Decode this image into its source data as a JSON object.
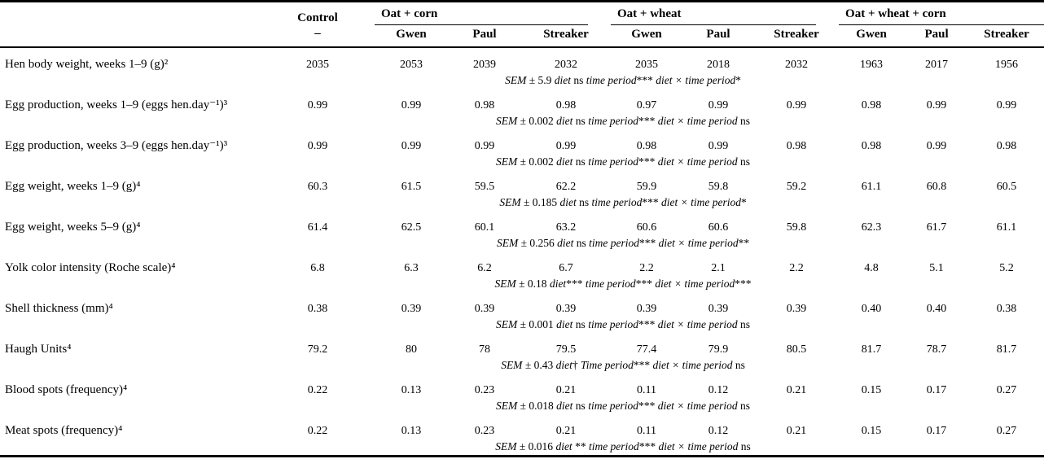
{
  "table": {
    "stub_header": "",
    "col_groups": [
      {
        "label": "Control",
        "sub": "–"
      },
      {
        "label": "Oat + corn",
        "cultivars": [
          "Gwen",
          "Paul",
          "Streaker"
        ]
      },
      {
        "label": "Oat + wheat",
        "cultivars": [
          "Gwen",
          "Paul",
          "Streaker"
        ]
      },
      {
        "label": "Oat + wheat + corn",
        "cultivars": [
          "Gwen",
          "Paul",
          "Streaker"
        ]
      }
    ],
    "rows": [
      {
        "label": "Hen body weight, weeks 1–9 (g)²",
        "values": [
          "2035",
          "2053",
          "2039",
          "2032",
          "2035",
          "2018",
          "2032",
          "1963",
          "2017",
          "1956"
        ],
        "sem": [
          {
            "t": "SEM",
            "i": true
          },
          {
            "t": " ± 5.9 ",
            "i": false
          },
          {
            "t": "diet",
            "i": true
          },
          {
            "t": " ns ",
            "i": false
          },
          {
            "t": "time period",
            "i": true
          },
          {
            "t": "*** ",
            "i": false
          },
          {
            "t": "diet × time period",
            "i": true
          },
          {
            "t": "*",
            "i": false
          }
        ]
      },
      {
        "label": "Egg production, weeks 1–9 (eggs hen.day⁻¹)³",
        "values": [
          "0.99",
          "0.99",
          "0.98",
          "0.98",
          "0.97",
          "0.99",
          "0.99",
          "0.98",
          "0.99",
          "0.99"
        ],
        "sem": [
          {
            "t": "SEM",
            "i": true
          },
          {
            "t": " ± 0.002 ",
            "i": false
          },
          {
            "t": "diet",
            "i": true
          },
          {
            "t": " ns ",
            "i": false
          },
          {
            "t": "time period",
            "i": true
          },
          {
            "t": "*** ",
            "i": false
          },
          {
            "t": "diet × time period",
            "i": true
          },
          {
            "t": " ns",
            "i": false
          }
        ]
      },
      {
        "label": "Egg production, weeks 3–9 (eggs hen.day⁻¹)³",
        "values": [
          "0.99",
          "0.99",
          "0.99",
          "0.99",
          "0.98",
          "0.99",
          "0.98",
          "0.98",
          "0.99",
          "0.98"
        ],
        "sem": [
          {
            "t": "SEM",
            "i": true
          },
          {
            "t": " ± 0.002 ",
            "i": false
          },
          {
            "t": "diet",
            "i": true
          },
          {
            "t": " ns ",
            "i": false
          },
          {
            "t": "time period",
            "i": true
          },
          {
            "t": "*** ",
            "i": false
          },
          {
            "t": "diet × time period",
            "i": true
          },
          {
            "t": " ns",
            "i": false
          }
        ]
      },
      {
        "label": "Egg weight, weeks 1–9 (g)⁴",
        "values": [
          "60.3",
          "61.5",
          "59.5",
          "62.2",
          "59.9",
          "59.8",
          "59.2",
          "61.1",
          "60.8",
          "60.5"
        ],
        "sem": [
          {
            "t": "SEM",
            "i": true
          },
          {
            "t": " ± 0.185 ",
            "i": false
          },
          {
            "t": "diet",
            "i": true
          },
          {
            "t": " ns ",
            "i": false
          },
          {
            "t": "time period",
            "i": true
          },
          {
            "t": "*** ",
            "i": false
          },
          {
            "t": "diet × time period",
            "i": true
          },
          {
            "t": "*",
            "i": false
          }
        ]
      },
      {
        "label": "Egg weight, weeks 5–9 (g)⁴",
        "values": [
          "61.4",
          "62.5",
          "60.1",
          "63.2",
          "60.6",
          "60.6",
          "59.8",
          "62.3",
          "61.7",
          "61.1"
        ],
        "sem": [
          {
            "t": "SEM",
            "i": true
          },
          {
            "t": " ± 0.256 ",
            "i": false
          },
          {
            "t": "diet",
            "i": true
          },
          {
            "t": " ns ",
            "i": false
          },
          {
            "t": "time period",
            "i": true
          },
          {
            "t": "*** ",
            "i": false
          },
          {
            "t": "diet × time period",
            "i": true
          },
          {
            "t": "**",
            "i": false
          }
        ]
      },
      {
        "label": "Yolk color intensity (Roche scale)⁴",
        "values": [
          "6.8",
          "6.3",
          "6.2",
          "6.7",
          "2.2",
          "2.1",
          "2.2",
          "4.8",
          "5.1",
          "5.2"
        ],
        "sem": [
          {
            "t": "SEM",
            "i": true
          },
          {
            "t": " ± 0.18 ",
            "i": false
          },
          {
            "t": "diet",
            "i": true
          },
          {
            "t": "*** ",
            "i": false
          },
          {
            "t": "time period",
            "i": true
          },
          {
            "t": "*** ",
            "i": false
          },
          {
            "t": "diet × time period",
            "i": true
          },
          {
            "t": "***",
            "i": false
          }
        ]
      },
      {
        "label": "Shell thickness (mm)⁴",
        "values": [
          "0.38",
          "0.39",
          "0.39",
          "0.39",
          "0.39",
          "0.39",
          "0.39",
          "0.40",
          "0.40",
          "0.38"
        ],
        "sem": [
          {
            "t": "SEM",
            "i": true
          },
          {
            "t": " ± 0.001 ",
            "i": false
          },
          {
            "t": "diet",
            "i": true
          },
          {
            "t": " ns ",
            "i": false
          },
          {
            "t": "time period",
            "i": true
          },
          {
            "t": "*** ",
            "i": false
          },
          {
            "t": "diet × time period",
            "i": true
          },
          {
            "t": " ns",
            "i": false
          }
        ]
      },
      {
        "label": "Haugh Units⁴",
        "values": [
          "79.2",
          "80",
          "78",
          "79.5",
          "77.4",
          "79.9",
          "80.5",
          "81.7",
          "78.7",
          "81.7"
        ],
        "sem": [
          {
            "t": "SEM",
            "i": true
          },
          {
            "t": " ± 0.43 ",
            "i": false
          },
          {
            "t": "diet",
            "i": true
          },
          {
            "t": "† ",
            "i": false
          },
          {
            "t": "Time period",
            "i": true
          },
          {
            "t": "*** ",
            "i": false
          },
          {
            "t": "diet × time period",
            "i": true
          },
          {
            "t": " ns",
            "i": false
          }
        ]
      },
      {
        "label": "Blood spots (frequency)⁴",
        "values": [
          "0.22",
          "0.13",
          "0.23",
          "0.21",
          "0.11",
          "0.12",
          "0.21",
          "0.15",
          "0.17",
          "0.27"
        ],
        "sem": [
          {
            "t": "SEM",
            "i": true
          },
          {
            "t": " ± 0.018 ",
            "i": false
          },
          {
            "t": "diet",
            "i": true
          },
          {
            "t": " ns ",
            "i": false
          },
          {
            "t": "time period",
            "i": true
          },
          {
            "t": "*** ",
            "i": false
          },
          {
            "t": "diet × time period",
            "i": true
          },
          {
            "t": " ns",
            "i": false
          }
        ]
      },
      {
        "label": "Meat spots (frequency)⁴",
        "values": [
          "0.22",
          "0.13",
          "0.23",
          "0.21",
          "0.11",
          "0.12",
          "0.21",
          "0.15",
          "0.17",
          "0.27"
        ],
        "sem": [
          {
            "t": "SEM",
            "i": true
          },
          {
            "t": " ± 0.016 ",
            "i": false
          },
          {
            "t": "diet",
            "i": true
          },
          {
            "t": " ** ",
            "i": false
          },
          {
            "t": "time period",
            "i": true
          },
          {
            "t": "*** ",
            "i": false
          },
          {
            "t": "diet × time period",
            "i": true
          },
          {
            "t": " ns",
            "i": false
          }
        ]
      }
    ]
  }
}
